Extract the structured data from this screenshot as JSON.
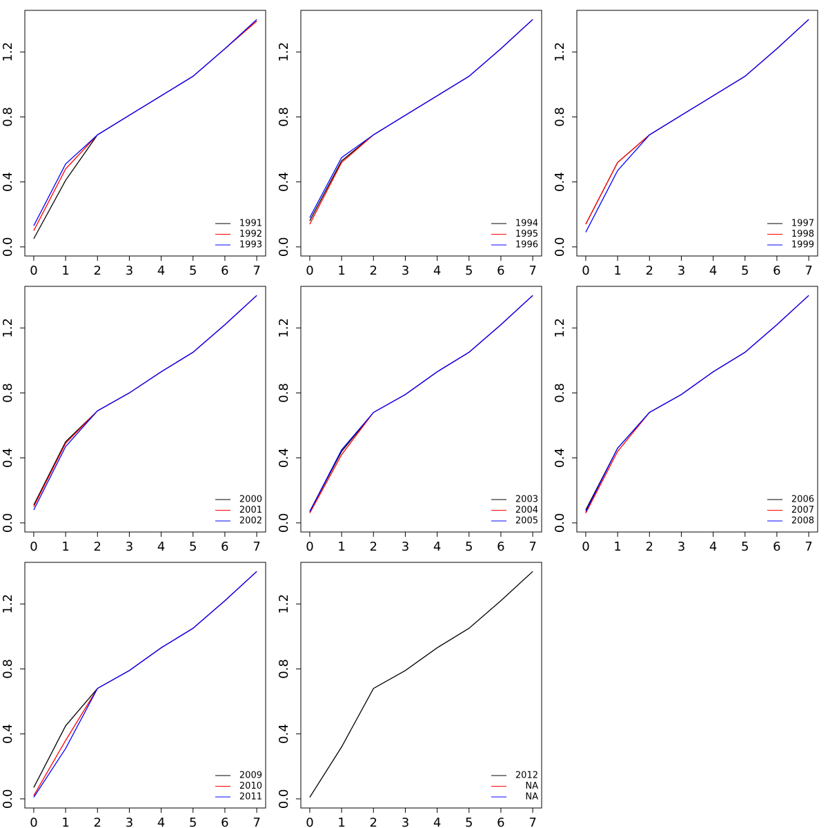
{
  "chart_data": [
    {
      "type": "line",
      "x": [
        0,
        1,
        2,
        3,
        4,
        5,
        6,
        7
      ],
      "xlim": [
        -0.28,
        7.28
      ],
      "xticks": [
        0,
        1,
        2,
        3,
        4,
        5,
        6,
        7
      ],
      "ylim": [
        -0.056,
        1.456
      ],
      "yticks": [
        {
          "value": 0,
          "label": "0.0"
        },
        {
          "value": 0.4,
          "label": "0.4"
        },
        {
          "value": 0.8,
          "label": "0.8"
        },
        {
          "value": 1.2,
          "label": "1.2"
        }
      ],
      "legend": "bottom-right",
      "series": [
        {
          "name": "1991",
          "color": "#000000",
          "values": [
            0.05,
            0.41,
            0.69,
            0.81,
            0.93,
            1.05,
            1.22,
            1.39
          ]
        },
        {
          "name": "1992",
          "color": "#ff0000",
          "values": [
            0.1,
            0.48,
            0.69,
            0.81,
            0.93,
            1.05,
            1.22,
            1.39
          ]
        },
        {
          "name": "1993",
          "color": "#0000ff",
          "values": [
            0.13,
            0.51,
            0.69,
            0.81,
            0.93,
            1.05,
            1.22,
            1.4
          ]
        }
      ]
    },
    {
      "type": "line",
      "x": [
        0,
        1,
        2,
        3,
        4,
        5,
        6,
        7
      ],
      "xlim": [
        -0.28,
        7.28
      ],
      "xticks": [
        0,
        1,
        2,
        3,
        4,
        5,
        6,
        7
      ],
      "ylim": [
        -0.056,
        1.456
      ],
      "yticks": [
        {
          "value": 0,
          "label": "0.0"
        },
        {
          "value": 0.4,
          "label": "0.4"
        },
        {
          "value": 0.8,
          "label": "0.8"
        },
        {
          "value": 1.2,
          "label": "1.2"
        }
      ],
      "legend": "bottom-right",
      "series": [
        {
          "name": "1994",
          "color": "#000000",
          "values": [
            0.16,
            0.53,
            0.69,
            0.81,
            0.93,
            1.05,
            1.22,
            1.4
          ]
        },
        {
          "name": "1995",
          "color": "#ff0000",
          "values": [
            0.14,
            0.52,
            0.69,
            0.81,
            0.93,
            1.05,
            1.22,
            1.4
          ]
        },
        {
          "name": "1996",
          "color": "#0000ff",
          "values": [
            0.18,
            0.55,
            0.69,
            0.81,
            0.93,
            1.05,
            1.22,
            1.4
          ]
        }
      ]
    },
    {
      "type": "line",
      "x": [
        0,
        1,
        2,
        3,
        4,
        5,
        6,
        7
      ],
      "xlim": [
        -0.28,
        7.28
      ],
      "xticks": [
        0,
        1,
        2,
        3,
        4,
        5,
        6,
        7
      ],
      "ylim": [
        -0.056,
        1.456
      ],
      "yticks": [
        {
          "value": 0,
          "label": "0.0"
        },
        {
          "value": 0.4,
          "label": "0.4"
        },
        {
          "value": 0.8,
          "label": "0.8"
        },
        {
          "value": 1.2,
          "label": "1.2"
        }
      ],
      "legend": "bottom-right",
      "series": [
        {
          "name": "1997",
          "color": "#000000",
          "values": [
            0.14,
            0.52,
            0.69,
            0.81,
            0.93,
            1.05,
            1.22,
            1.4
          ]
        },
        {
          "name": "1998",
          "color": "#ff0000",
          "values": [
            0.14,
            0.52,
            0.69,
            0.81,
            0.93,
            1.05,
            1.22,
            1.4
          ]
        },
        {
          "name": "1999",
          "color": "#0000ff",
          "values": [
            0.09,
            0.47,
            0.69,
            0.81,
            0.93,
            1.05,
            1.22,
            1.4
          ]
        }
      ]
    },
    {
      "type": "line",
      "x": [
        0,
        1,
        2,
        3,
        4,
        5,
        6,
        7
      ],
      "xlim": [
        -0.28,
        7.28
      ],
      "xticks": [
        0,
        1,
        2,
        3,
        4,
        5,
        6,
        7
      ],
      "ylim": [
        -0.056,
        1.456
      ],
      "yticks": [
        {
          "value": 0,
          "label": "0.0"
        },
        {
          "value": 0.4,
          "label": "0.4"
        },
        {
          "value": 0.8,
          "label": "0.8"
        },
        {
          "value": 1.2,
          "label": "1.2"
        }
      ],
      "legend": "bottom-right",
      "series": [
        {
          "name": "2000",
          "color": "#000000",
          "values": [
            0.11,
            0.5,
            0.69,
            0.8,
            0.93,
            1.05,
            1.22,
            1.4
          ]
        },
        {
          "name": "2001",
          "color": "#ff0000",
          "values": [
            0.1,
            0.49,
            0.69,
            0.8,
            0.93,
            1.05,
            1.22,
            1.4
          ]
        },
        {
          "name": "2002",
          "color": "#0000ff",
          "values": [
            0.08,
            0.47,
            0.69,
            0.8,
            0.93,
            1.05,
            1.22,
            1.4
          ]
        }
      ]
    },
    {
      "type": "line",
      "x": [
        0,
        1,
        2,
        3,
        4,
        5,
        6,
        7
      ],
      "xlim": [
        -0.28,
        7.28
      ],
      "xticks": [
        0,
        1,
        2,
        3,
        4,
        5,
        6,
        7
      ],
      "ylim": [
        -0.056,
        1.456
      ],
      "yticks": [
        {
          "value": 0,
          "label": "0.0"
        },
        {
          "value": 0.4,
          "label": "0.4"
        },
        {
          "value": 0.8,
          "label": "0.8"
        },
        {
          "value": 1.2,
          "label": "1.2"
        }
      ],
      "legend": "bottom-right",
      "series": [
        {
          "name": "2003",
          "color": "#000000",
          "values": [
            0.07,
            0.44,
            0.68,
            0.79,
            0.93,
            1.05,
            1.22,
            1.4
          ]
        },
        {
          "name": "2004",
          "color": "#ff0000",
          "values": [
            0.06,
            0.42,
            0.68,
            0.79,
            0.93,
            1.05,
            1.22,
            1.4
          ]
        },
        {
          "name": "2005",
          "color": "#0000ff",
          "values": [
            0.07,
            0.45,
            0.68,
            0.79,
            0.93,
            1.05,
            1.22,
            1.4
          ]
        }
      ]
    },
    {
      "type": "line",
      "x": [
        0,
        1,
        2,
        3,
        4,
        5,
        6,
        7
      ],
      "xlim": [
        -0.28,
        7.28
      ],
      "xticks": [
        0,
        1,
        2,
        3,
        4,
        5,
        6,
        7
      ],
      "ylim": [
        -0.056,
        1.456
      ],
      "yticks": [
        {
          "value": 0,
          "label": "0.0"
        },
        {
          "value": 0.4,
          "label": "0.4"
        },
        {
          "value": 0.8,
          "label": "0.8"
        },
        {
          "value": 1.2,
          "label": "1.2"
        }
      ],
      "legend": "bottom-right",
      "series": [
        {
          "name": "2006",
          "color": "#000000",
          "values": [
            0.08,
            0.46,
            0.68,
            0.79,
            0.93,
            1.05,
            1.22,
            1.4
          ]
        },
        {
          "name": "2007",
          "color": "#ff0000",
          "values": [
            0.06,
            0.44,
            0.68,
            0.79,
            0.93,
            1.05,
            1.22,
            1.4
          ]
        },
        {
          "name": "2008",
          "color": "#0000ff",
          "values": [
            0.07,
            0.46,
            0.68,
            0.79,
            0.93,
            1.05,
            1.22,
            1.4
          ]
        }
      ]
    },
    {
      "type": "line",
      "x": [
        0,
        1,
        2,
        3,
        4,
        5,
        6,
        7
      ],
      "xlim": [
        -0.28,
        7.28
      ],
      "xticks": [
        0,
        1,
        2,
        3,
        4,
        5,
        6,
        7
      ],
      "ylim": [
        -0.056,
        1.456
      ],
      "yticks": [
        {
          "value": 0,
          "label": "0.0"
        },
        {
          "value": 0.4,
          "label": "0.4"
        },
        {
          "value": 0.8,
          "label": "0.8"
        },
        {
          "value": 1.2,
          "label": "1.2"
        }
      ],
      "legend": "bottom-right",
      "series": [
        {
          "name": "2009",
          "color": "#000000",
          "values": [
            0.07,
            0.45,
            0.68,
            0.79,
            0.93,
            1.05,
            1.22,
            1.4
          ]
        },
        {
          "name": "2010",
          "color": "#ff0000",
          "values": [
            0.02,
            0.36,
            0.68,
            0.79,
            0.93,
            1.05,
            1.22,
            1.4
          ]
        },
        {
          "name": "2011",
          "color": "#0000ff",
          "values": [
            0.01,
            0.31,
            0.68,
            0.79,
            0.93,
            1.05,
            1.22,
            1.4
          ]
        }
      ]
    },
    {
      "type": "line",
      "x": [
        0,
        1,
        2,
        3,
        4,
        5,
        6,
        7
      ],
      "xlim": [
        -0.28,
        7.28
      ],
      "xticks": [
        0,
        1,
        2,
        3,
        4,
        5,
        6,
        7
      ],
      "ylim": [
        -0.056,
        1.456
      ],
      "yticks": [
        {
          "value": 0,
          "label": "0.0"
        },
        {
          "value": 0.4,
          "label": "0.4"
        },
        {
          "value": 0.8,
          "label": "0.8"
        },
        {
          "value": 1.2,
          "label": "1.2"
        }
      ],
      "legend": "bottom-right",
      "series": [
        {
          "name": "2012",
          "color": "#000000",
          "values": [
            0.01,
            0.32,
            0.68,
            0.79,
            0.93,
            1.05,
            1.22,
            1.4
          ]
        },
        {
          "name": "NA",
          "color": "#ff0000",
          "values": [
            null,
            null,
            null,
            null,
            null,
            null,
            null,
            null
          ]
        },
        {
          "name": "NA",
          "color": "#0000ff",
          "values": [
            null,
            null,
            null,
            null,
            null,
            null,
            null,
            null
          ]
        }
      ]
    }
  ]
}
